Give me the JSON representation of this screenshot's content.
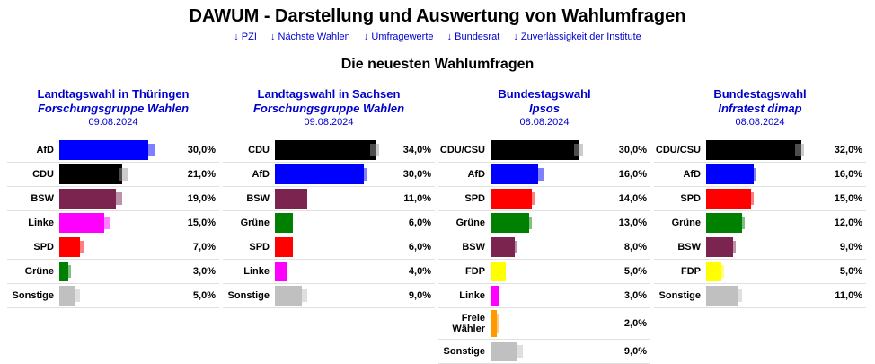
{
  "header": {
    "title": "DAWUM - Darstellung und Auswertung von Wahlumfragen",
    "nav": [
      {
        "label": "↓ PZI"
      },
      {
        "label": "↓ Nächste Wahlen"
      },
      {
        "label": "↓ Umfragewerte"
      },
      {
        "label": "↓ Bundesrat"
      },
      {
        "label": "↓ Zuverlässigkeit der Institute"
      }
    ]
  },
  "section": {
    "heading": "Die neuesten Wahlumfragen"
  },
  "chart_data": [
    {
      "type": "bar",
      "title": "Landtagswahl in Thüringen",
      "institute": "Forschungsgruppe Wahlen",
      "date": "09.08.2024",
      "unit": "%",
      "xlim": [
        0,
        38
      ],
      "categories": [
        "AfD",
        "CDU",
        "BSW",
        "Linke",
        "SPD",
        "Grüne",
        "Sonstige"
      ],
      "values": [
        30.0,
        21.0,
        19.0,
        15.0,
        7.0,
        3.0,
        5.0
      ],
      "value_labels": [
        "30,0%",
        "21,0%",
        "19,0%",
        "15,0%",
        "7,0%",
        "3,0%",
        "5,0%"
      ],
      "previous_values": [
        32.0,
        23.0,
        21.0,
        17.0,
        8.0,
        4.0,
        7.0
      ],
      "colors": [
        "#0000ff",
        "#000000",
        "#7b2450",
        "#ff00ff",
        "#ff0000",
        "#008000",
        "#c0c0c0"
      ]
    },
    {
      "type": "bar",
      "title": "Landtagswahl in Sachsen",
      "institute": "Forschungsgruppe Wahlen",
      "date": "09.08.2024",
      "unit": "%",
      "xlim": [
        0,
        38
      ],
      "categories": [
        "CDU",
        "AfD",
        "BSW",
        "Grüne",
        "SPD",
        "Linke",
        "Sonstige"
      ],
      "values": [
        34.0,
        30.0,
        11.0,
        6.0,
        6.0,
        4.0,
        9.0
      ],
      "value_labels": [
        "34,0%",
        "30,0%",
        "11,0%",
        "6,0%",
        "6,0%",
        "4,0%",
        "9,0%"
      ],
      "previous_values": [
        35.0,
        31.0,
        11.0,
        6.0,
        6.0,
        4.0,
        11.0
      ],
      "colors": [
        "#000000",
        "#0000ff",
        "#7b2450",
        "#008000",
        "#ff0000",
        "#ff00ff",
        "#c0c0c0"
      ]
    },
    {
      "type": "bar",
      "title": "Bundestagswahl",
      "institute": "Ipsos",
      "date": "08.08.2024",
      "unit": "%",
      "xlim": [
        0,
        38
      ],
      "categories": [
        "CDU/CSU",
        "AfD",
        "SPD",
        "Grüne",
        "BSW",
        "FDP",
        "Linke",
        "Freie Wähler",
        "Sonstige"
      ],
      "values": [
        30.0,
        16.0,
        14.0,
        13.0,
        8.0,
        5.0,
        3.0,
        2.0,
        9.0
      ],
      "value_labels": [
        "30,0%",
        "16,0%",
        "14,0%",
        "13,0%",
        "8,0%",
        "5,0%",
        "3,0%",
        "2,0%",
        "9,0%"
      ],
      "previous_values": [
        31.0,
        18.0,
        15.0,
        14.0,
        9.0,
        5.0,
        3.0,
        2.0,
        11.0
      ],
      "colors": [
        "#000000",
        "#0000ff",
        "#ff0000",
        "#008000",
        "#7b2450",
        "#ffff00",
        "#ff00ff",
        "#ff9900",
        "#c0c0c0"
      ]
    },
    {
      "type": "bar",
      "title": "Bundestagswahl",
      "institute": "Infratest dimap",
      "date": "08.08.2024",
      "unit": "%",
      "xlim": [
        0,
        38
      ],
      "categories": [
        "CDU/CSU",
        "AfD",
        "SPD",
        "Grüne",
        "BSW",
        "FDP",
        "Sonstige"
      ],
      "values": [
        32.0,
        16.0,
        15.0,
        12.0,
        9.0,
        5.0,
        11.0
      ],
      "value_labels": [
        "32,0%",
        "16,0%",
        "15,0%",
        "12,0%",
        "9,0%",
        "5,0%",
        "11,0%"
      ],
      "previous_values": [
        33.0,
        17.0,
        16.0,
        13.0,
        10.0,
        6.0,
        12.0
      ],
      "colors": [
        "#000000",
        "#0000ff",
        "#ff0000",
        "#008000",
        "#7b2450",
        "#ffff00",
        "#c0c0c0"
      ]
    }
  ]
}
